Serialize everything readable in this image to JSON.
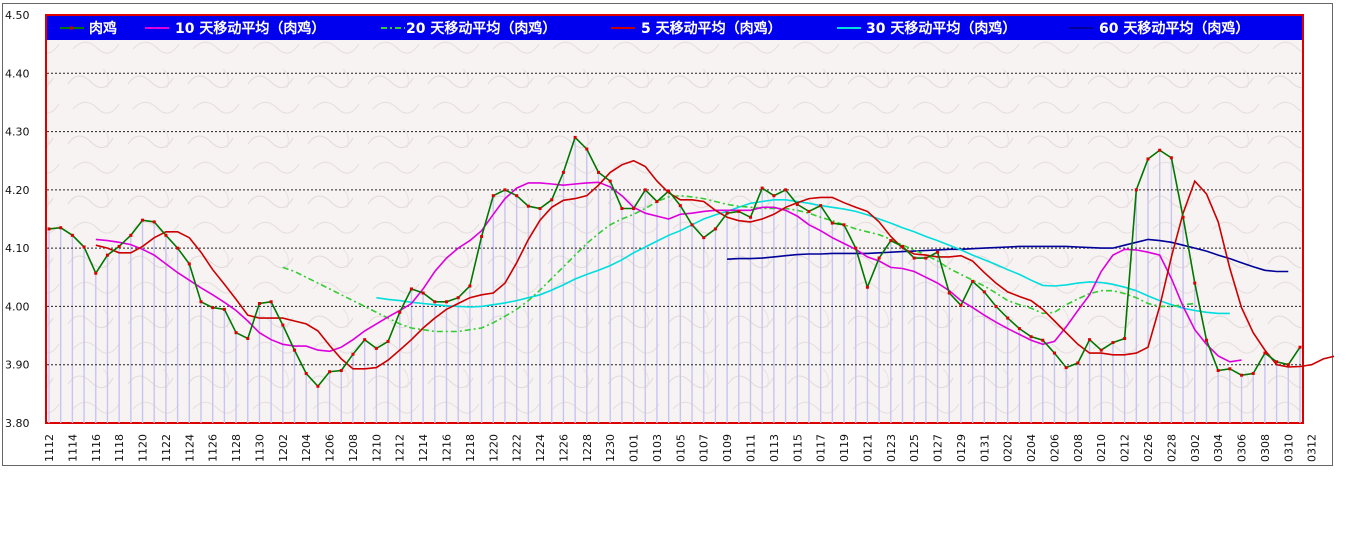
{
  "chart_data": {
    "type": "line",
    "ylim": [
      3.8,
      4.5
    ],
    "yticks": [
      "4.50",
      "4.40",
      "4.30",
      "4.20",
      "4.10",
      "4.00",
      "3.90",
      "3.80"
    ],
    "xticks": [
      "1112",
      "1114",
      "1116",
      "1118",
      "1120",
      "1122",
      "1124",
      "1126",
      "1128",
      "1130",
      "1202",
      "1204",
      "1206",
      "1208",
      "1210",
      "1212",
      "1214",
      "1216",
      "1218",
      "1220",
      "1222",
      "1224",
      "1226",
      "1228",
      "1230",
      "0101",
      "0103",
      "0105",
      "0107",
      "0109",
      "0111",
      "0113",
      "0115",
      "0117",
      "0119",
      "0121",
      "0123",
      "0125",
      "0127",
      "0129",
      "0131",
      "0202",
      "0204",
      "0206",
      "0208",
      "0210",
      "0212",
      "0226",
      "0228",
      "0302",
      "0304",
      "0306",
      "0308",
      "0310",
      "0312"
    ],
    "grid": "horizontal-dashed",
    "legend_placement": "top",
    "colors": {
      "main": "#007700",
      "main_marker": "#dd0000",
      "ma5": "#cc0000",
      "ma10": "#dd00dd",
      "ma20": "#33cc33",
      "ma30": "#00dddd",
      "ma60": "#000099",
      "bars": "#c8c4f0",
      "plot_border": "#dd0000",
      "legend_bg": "#0000ee"
    },
    "series": [
      {
        "name": "肉鸡",
        "key": "main",
        "values": [
          4.133,
          4.135,
          4.122,
          4.102,
          4.057,
          4.088,
          4.103,
          4.122,
          4.148,
          4.145,
          4.122,
          4.1,
          4.073,
          4.008,
          3.998,
          3.995,
          3.955,
          3.945,
          4.005,
          4.008,
          3.968,
          3.925,
          3.885,
          3.863,
          3.888,
          3.89,
          3.918,
          3.943,
          3.928,
          3.94,
          3.99,
          4.03,
          4.023,
          4.008,
          4.008,
          4.015,
          4.035,
          4.12,
          4.19,
          4.2,
          4.19,
          4.172,
          4.168,
          4.183,
          4.23,
          4.29,
          4.27,
          4.23,
          4.215,
          4.168,
          4.168,
          4.2,
          4.18,
          4.198,
          4.173,
          4.14,
          4.118,
          4.133,
          4.16,
          4.163,
          4.153,
          4.203,
          4.19,
          4.2,
          4.175,
          4.163,
          4.173,
          4.143,
          4.14,
          4.1,
          4.033,
          4.083,
          4.113,
          4.103,
          4.083,
          4.083,
          4.093,
          4.023,
          4.002,
          4.043,
          4.025,
          4.0,
          3.98,
          3.962,
          3.948,
          3.942,
          3.92,
          3.895,
          3.903,
          3.943,
          3.925,
          3.938,
          3.945,
          4.2,
          4.253,
          4.268,
          4.255,
          4.153,
          4.04,
          3.942,
          3.89,
          3.893,
          3.882,
          3.885,
          3.92,
          3.905,
          3.9,
          3.93
        ]
      },
      {
        "name": "10 天移动平均（肉鸡）",
        "key": "ma10",
        "start": 4,
        "values": [
          4.115,
          4.113,
          4.11,
          4.106,
          4.098,
          4.088,
          4.073,
          4.058,
          4.045,
          4.032,
          4.02,
          4.007,
          3.993,
          3.975,
          3.955,
          3.943,
          3.935,
          3.932,
          3.932,
          3.925,
          3.923,
          3.93,
          3.943,
          3.958,
          3.97,
          3.982,
          3.993,
          4.005,
          4.03,
          4.06,
          4.083,
          4.1,
          4.113,
          4.13,
          4.158,
          4.185,
          4.203,
          4.212,
          4.212,
          4.21,
          4.208,
          4.21,
          4.212,
          4.213,
          4.205,
          4.19,
          4.17,
          4.16,
          4.155,
          4.15,
          4.158,
          4.16,
          4.163,
          4.165,
          4.165,
          4.165,
          4.165,
          4.17,
          4.17,
          4.165,
          4.155,
          4.14,
          4.13,
          4.118,
          4.108,
          4.098,
          4.085,
          4.078,
          4.067,
          4.065,
          4.06,
          4.05,
          4.04,
          4.027,
          4.01,
          3.998,
          3.985,
          3.973,
          3.962,
          3.952,
          3.942,
          3.935,
          3.94,
          3.965,
          3.993,
          4.02,
          4.06,
          4.088,
          4.098,
          4.097,
          4.093,
          4.088,
          4.048,
          4.0,
          3.96,
          3.935,
          3.915,
          3.905,
          3.908
        ]
      },
      {
        "name": "20 天移动平均（肉鸡）",
        "key": "ma20",
        "start": 20,
        "values": [
          4.067,
          4.06,
          4.05,
          4.04,
          4.03,
          4.02,
          4.01,
          4.0,
          3.99,
          3.98,
          3.97,
          3.963,
          3.96,
          3.957,
          3.957,
          3.957,
          3.96,
          3.963,
          3.972,
          3.983,
          3.995,
          4.01,
          4.028,
          4.048,
          4.068,
          4.088,
          4.108,
          4.125,
          4.14,
          4.15,
          4.158,
          4.168,
          4.18,
          4.188,
          4.19,
          4.188,
          4.185,
          4.18,
          4.175,
          4.172,
          4.17,
          4.168,
          4.168,
          4.168,
          4.165,
          4.16,
          4.153,
          4.147,
          4.14,
          4.133,
          4.128,
          4.123,
          4.115,
          4.105,
          4.097,
          4.088,
          4.078,
          4.065,
          4.055,
          4.045,
          4.035,
          4.023,
          4.01,
          4.003,
          3.997,
          3.988,
          3.99,
          4.003,
          4.013,
          4.022,
          4.027,
          4.027,
          4.022,
          4.015,
          4.005,
          4.0,
          4.0,
          4.003,
          4.005
        ]
      },
      {
        "name": "5 天移动平均（肉鸡）",
        "key": "ma5",
        "start": 4,
        "values": [
          4.105,
          4.1,
          4.092,
          4.092,
          4.103,
          4.118,
          4.128,
          4.128,
          4.118,
          4.093,
          4.063,
          4.038,
          4.012,
          3.985,
          3.98,
          3.98,
          3.98,
          3.975,
          3.97,
          3.958,
          3.933,
          3.91,
          3.893,
          3.893,
          3.895,
          3.908,
          3.925,
          3.943,
          3.963,
          3.98,
          3.995,
          4.005,
          4.015,
          4.02,
          4.023,
          4.04,
          4.075,
          4.115,
          4.148,
          4.17,
          4.182,
          4.185,
          4.19,
          4.208,
          4.23,
          4.243,
          4.25,
          4.24,
          4.215,
          4.195,
          4.183,
          4.183,
          4.18,
          4.165,
          4.153,
          4.147,
          4.145,
          4.15,
          4.158,
          4.17,
          4.178,
          4.185,
          4.187,
          4.187,
          4.178,
          4.17,
          4.163,
          4.145,
          4.12,
          4.1,
          4.09,
          4.088,
          4.085,
          4.085,
          4.087,
          4.078,
          4.058,
          4.04,
          4.025,
          4.017,
          4.01,
          3.995,
          3.975,
          3.955,
          3.935,
          3.92,
          3.92,
          3.917,
          3.917,
          3.92,
          3.93,
          4.0,
          4.085,
          4.16,
          4.215,
          4.193,
          4.145,
          4.065,
          3.998,
          3.955,
          3.925,
          3.9,
          3.896,
          3.897,
          3.9,
          3.91,
          3.915
        ]
      },
      {
        "name": "30 天移动平均（肉鸡）",
        "key": "ma30",
        "start": 28,
        "values": [
          4.015,
          4.012,
          4.01,
          4.007,
          4.005,
          4.003,
          4.001,
          4.0,
          3.999,
          4.0,
          4.003,
          4.006,
          4.01,
          4.015,
          4.02,
          4.028,
          4.037,
          4.047,
          4.055,
          4.062,
          4.07,
          4.08,
          4.092,
          4.102,
          4.112,
          4.122,
          4.13,
          4.14,
          4.15,
          4.157,
          4.163,
          4.17,
          4.177,
          4.18,
          4.183,
          4.183,
          4.18,
          4.177,
          4.173,
          4.17,
          4.167,
          4.163,
          4.157,
          4.15,
          4.143,
          4.135,
          4.128,
          4.12,
          4.113,
          4.105,
          4.097,
          4.088,
          4.08,
          4.072,
          4.063,
          4.055,
          4.045,
          4.036,
          4.035,
          4.037,
          4.04,
          4.042,
          4.041,
          4.038,
          4.033,
          4.027,
          4.018,
          4.01,
          4.003,
          3.997,
          3.993,
          3.99,
          3.988,
          3.988
        ]
      },
      {
        "name": "60 天移动平均（肉鸡）",
        "key": "ma60",
        "start": 58,
        "values": [
          4.081,
          4.082,
          4.082,
          4.083,
          4.085,
          4.087,
          4.089,
          4.09,
          4.09,
          4.091,
          4.091,
          4.091,
          4.091,
          4.092,
          4.093,
          4.094,
          4.095,
          4.096,
          4.097,
          4.098,
          4.098,
          4.099,
          4.1,
          4.101,
          4.102,
          4.103,
          4.103,
          4.103,
          4.103,
          4.103,
          4.102,
          4.101,
          4.1,
          4.1,
          4.105,
          4.11,
          4.115,
          4.113,
          4.11,
          4.105,
          4.1,
          4.095,
          4.088,
          4.082,
          4.075,
          4.068,
          4.062,
          4.06,
          4.06
        ]
      }
    ]
  }
}
